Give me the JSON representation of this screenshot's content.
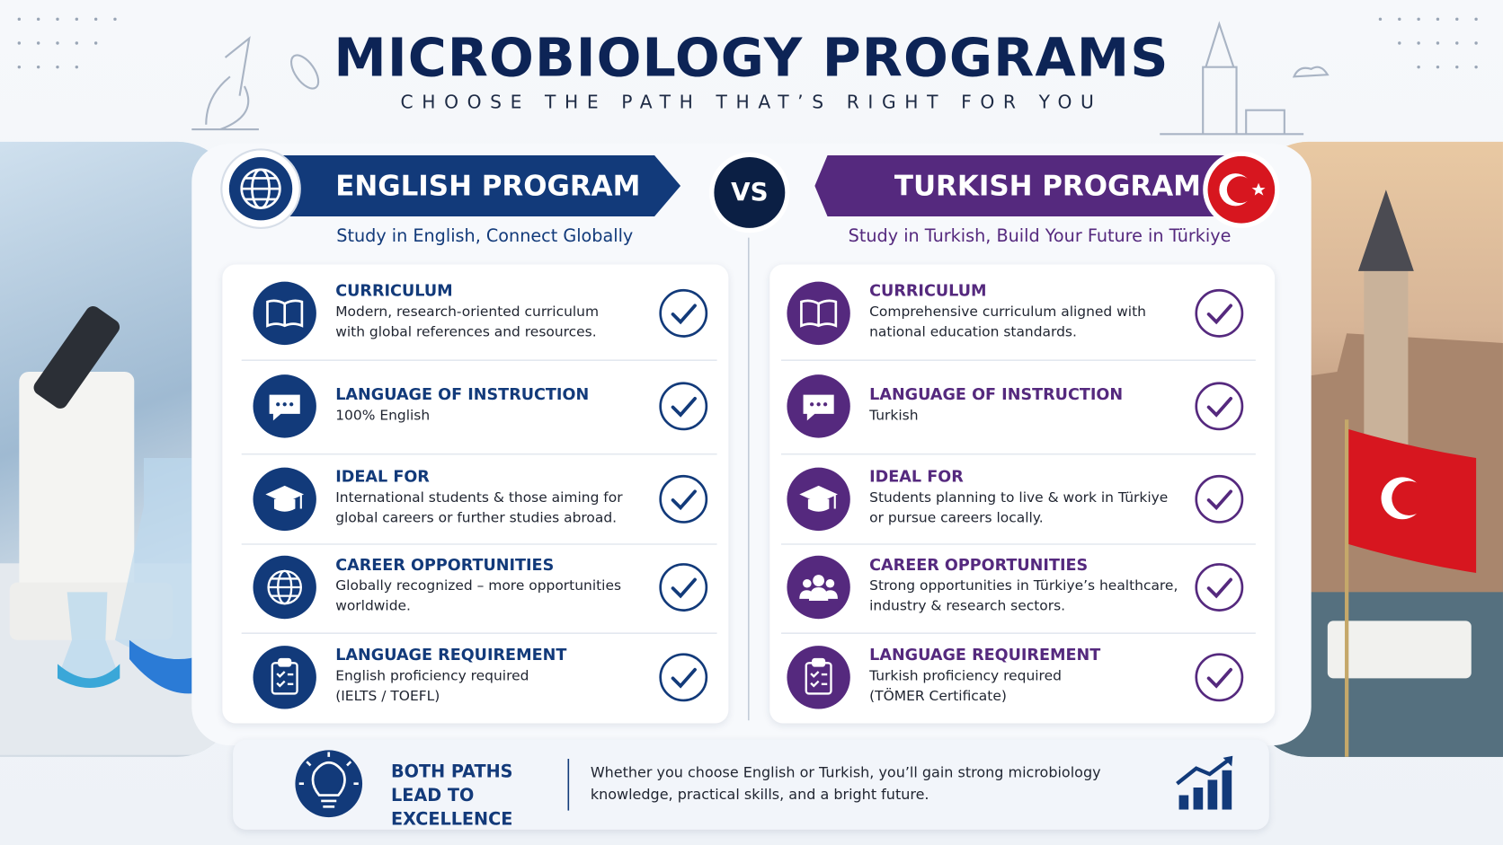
{
  "header": {
    "title": "MICROBIOLOGY PROGRAMS",
    "subtitle": "CHOOSE THE PATH THAT’S RIGHT FOR YOU"
  },
  "vs": "VS",
  "programs": [
    {
      "title": "ENGLISH PROGRAM",
      "subtitle": "Study in English, Connect Globally",
      "color": "#123a7a",
      "items": [
        {
          "heading": "CURRICULUM",
          "lines": [
            "Modern, research-oriented curriculum",
            "with global references and resources."
          ]
        },
        {
          "heading": "LANGUAGE OF INSTRUCTION",
          "lines": [
            "100% English"
          ]
        },
        {
          "heading": "IDEAL FOR",
          "lines": [
            "International students & those aiming for",
            "global careers or further studies abroad."
          ]
        },
        {
          "heading": "CAREER OPPORTUNITIES",
          "lines": [
            "Globally recognized – more opportunities",
            "worldwide."
          ]
        },
        {
          "heading": "LANGUAGE REQUIREMENT",
          "lines": [
            "English proficiency required",
            "(IELTS / TOEFL)"
          ]
        }
      ]
    },
    {
      "title": "TURKISH PROGRAM",
      "subtitle": "Study in Turkish, Build Your Future in Türkiye",
      "color": "#55297e",
      "items": [
        {
          "heading": "CURRICULUM",
          "lines": [
            "Comprehensive curriculum aligned with",
            "national education standards."
          ]
        },
        {
          "heading": "LANGUAGE OF INSTRUCTION",
          "lines": [
            "Turkish"
          ]
        },
        {
          "heading": "IDEAL FOR",
          "lines": [
            "Students planning to live & work in Türkiye",
            "or pursue careers locally."
          ]
        },
        {
          "heading": "CAREER OPPORTUNITIES",
          "lines": [
            "Strong opportunities in Türkiye’s healthcare,",
            "industry & research sectors."
          ]
        },
        {
          "heading": "LANGUAGE REQUIREMENT",
          "lines": [
            "Turkish proficiency required",
            "(TÖMER Certificate)"
          ]
        }
      ]
    }
  ],
  "footer": {
    "heading": "BOTH PATHS LEAD TO EXCELLENCE",
    "text": "Whether you choose English or Turkish, you’ll gain strong microbiology knowledge, practical skills, and a bright future."
  }
}
